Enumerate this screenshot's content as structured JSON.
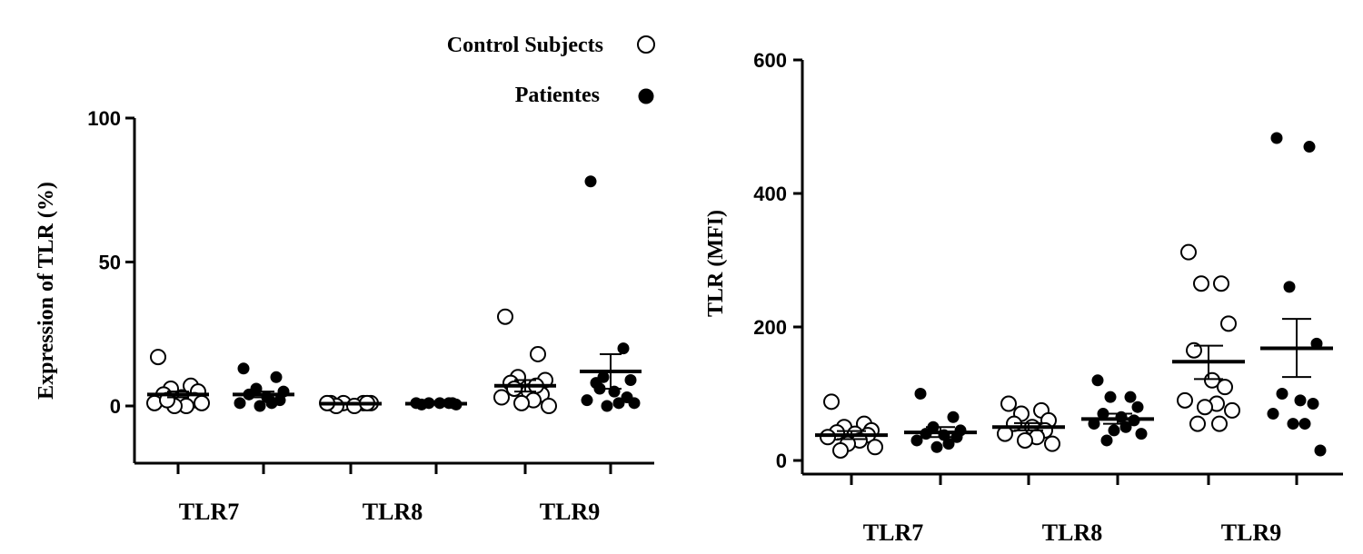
{
  "legend": {
    "items": [
      {
        "label": "Control Subjects",
        "marker": "open-circle"
      },
      {
        "label": "Patientes",
        "marker": "filled-circle"
      }
    ]
  },
  "chart_data": [
    {
      "type": "scatter",
      "ylabel": "Expression of TLR (%)",
      "xlabel": "",
      "ylim": [
        -20,
        100
      ],
      "yticks": [
        0,
        50,
        100
      ],
      "ytick_labels": [
        "0",
        "50",
        "100"
      ],
      "categories": [
        "TLR7",
        "TLR8",
        "TLR9"
      ],
      "groups": [
        "Control Subjects",
        "Patientes"
      ],
      "series": [
        {
          "name": "Control Subjects",
          "marker": "open-circle",
          "color": "#000000",
          "points": [
            {
              "category": "TLR7",
              "values": [
                17,
                7,
                6,
                5,
                4,
                3,
                2,
                1,
                0,
                0,
                1,
                2
              ],
              "mean": 4,
              "sem_low": 3,
              "sem_high": 5
            },
            {
              "category": "TLR8",
              "values": [
                1,
                1,
                1,
                1,
                0,
                0,
                1,
                1
              ],
              "mean": 0.8,
              "sem_low": 0.7,
              "sem_high": 0.9
            },
            {
              "category": "TLR9",
              "values": [
                31,
                18,
                10,
                9,
                8,
                5,
                4,
                3,
                2,
                1,
                0,
                6,
                7
              ],
              "mean": 7,
              "sem_low": 5,
              "sem_high": 9
            }
          ]
        },
        {
          "name": "Patientes",
          "marker": "filled-circle",
          "color": "#000000",
          "points": [
            {
              "category": "TLR7",
              "values": [
                13,
                10,
                6,
                5,
                4,
                3,
                2,
                1,
                1,
                0
              ],
              "mean": 4,
              "sem_low": 3,
              "sem_high": 5
            },
            {
              "category": "TLR8",
              "values": [
                1,
                1,
                1,
                0.5,
                0.5,
                1,
                1
              ],
              "mean": 0.8,
              "sem_low": 0.7,
              "sem_high": 0.9
            },
            {
              "category": "TLR9",
              "values": [
                78,
                20,
                10,
                9,
                8,
                5,
                3,
                2,
                1,
                0,
                1,
                6
              ],
              "mean": 12,
              "sem_low": 6,
              "sem_high": 18
            }
          ]
        }
      ]
    },
    {
      "type": "scatter",
      "ylabel": "TLR (MFI)",
      "xlabel": "",
      "ylim": [
        0,
        600
      ],
      "yticks": [
        0,
        200,
        400,
        600
      ],
      "ytick_labels": [
        "0",
        "200",
        "400",
        "600"
      ],
      "categories": [
        "TLR7",
        "TLR8",
        "TLR9"
      ],
      "groups": [
        "Control Subjects",
        "Patientes"
      ],
      "series": [
        {
          "name": "Control Subjects",
          "marker": "open-circle",
          "color": "#000000",
          "points": [
            {
              "category": "TLR7",
              "values": [
                88,
                55,
                50,
                45,
                42,
                40,
                38,
                35,
                30,
                25,
                20,
                15
              ],
              "mean": 38,
              "sem_low": 32,
              "sem_high": 44
            },
            {
              "category": "TLR8",
              "values": [
                85,
                75,
                70,
                60,
                55,
                50,
                45,
                40,
                35,
                30,
                25
              ],
              "mean": 50,
              "sem_low": 45,
              "sem_high": 56
            },
            {
              "category": "TLR9",
              "values": [
                312,
                265,
                265,
                205,
                165,
                120,
                110,
                90,
                85,
                80,
                75,
                55,
                55
              ],
              "mean": 148,
              "sem_low": 122,
              "sem_high": 172
            }
          ]
        },
        {
          "name": "Patientes",
          "marker": "filled-circle",
          "color": "#000000",
          "points": [
            {
              "category": "TLR7",
              "values": [
                100,
                65,
                50,
                45,
                40,
                38,
                35,
                30,
                25,
                20
              ],
              "mean": 42,
              "sem_low": 35,
              "sem_high": 50
            },
            {
              "category": "TLR8",
              "values": [
                120,
                95,
                95,
                80,
                70,
                65,
                60,
                55,
                50,
                45,
                40,
                30
              ],
              "mean": 62,
              "sem_low": 55,
              "sem_high": 70
            },
            {
              "category": "TLR9",
              "values": [
                483,
                470,
                260,
                175,
                100,
                90,
                85,
                70,
                55,
                55,
                15
              ],
              "mean": 168,
              "sem_low": 125,
              "sem_high": 212
            }
          ]
        }
      ]
    }
  ]
}
